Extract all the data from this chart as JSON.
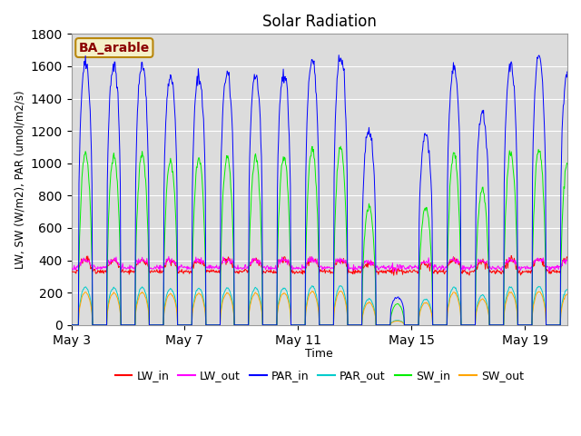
{
  "title": "Solar Radiation",
  "ylabel": "LW, SW (W/m2), PAR (umol/m2/s)",
  "xlabel": "Time",
  "annotation_text": "BA_arable",
  "annotation_color": "#8B0000",
  "annotation_bg": "#F5F0C8",
  "annotation_border": "#B8860B",
  "ylim": [
    0,
    1800
  ],
  "yticks": [
    0,
    200,
    400,
    600,
    800,
    1000,
    1200,
    1400,
    1600,
    1800
  ],
  "xtick_labels": [
    "May 3",
    "May 7",
    "May 11",
    "May 15",
    "May 19"
  ],
  "xtick_positions": [
    0,
    4,
    8,
    12,
    16
  ],
  "xlim": [
    0,
    17.5
  ],
  "colors": {
    "LW_in": "#FF0000",
    "LW_out": "#FF00FF",
    "PAR_in": "#0000FF",
    "PAR_out": "#00CCCC",
    "SW_in": "#00EE00",
    "SW_out": "#FFA500"
  },
  "n_days": 18,
  "plot_bg": "#DCDCDC",
  "grid_color": "#FFFFFF",
  "fig_bg": "#FFFFFF",
  "linewidth": 0.7
}
